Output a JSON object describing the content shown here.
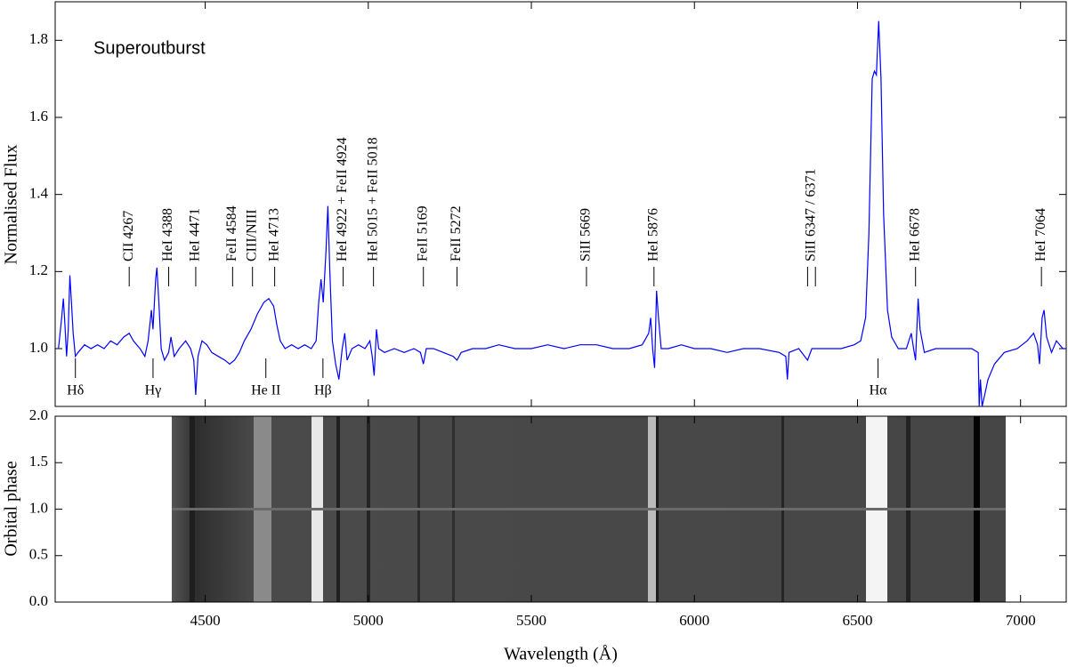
{
  "chart_data": [
    {
      "type": "line",
      "title": "Superoutburst",
      "ylabel": "Normalised Flux",
      "color": "#0000ff",
      "xlim": [
        4040,
        7140
      ],
      "ylim": [
        0.85,
        1.9
      ],
      "yticks": [
        {
          "value": 1,
          "label": "1.0"
        },
        1.2,
        1.4,
        1.6,
        1.8
      ],
      "x": [
        4050,
        4060,
        4065,
        4070,
        4075,
        4080,
        4085,
        4090,
        4095,
        4102,
        4110,
        4130,
        4150,
        4170,
        4190,
        4210,
        4230,
        4250,
        4267,
        4280,
        4300,
        4315,
        4325,
        4335,
        4340,
        4348,
        4352,
        4358,
        4365,
        4375,
        4388,
        4395,
        4405,
        4420,
        4440,
        4455,
        4465,
        4471,
        4478,
        4490,
        4505,
        4520,
        4540,
        4560,
        4575,
        4590,
        4605,
        4620,
        4640,
        4660,
        4680,
        4695,
        4710,
        4720,
        4730,
        4745,
        4765,
        4785,
        4805,
        4825,
        4840,
        4848,
        4855,
        4862,
        4870,
        4876,
        4882,
        4890,
        4900,
        4910,
        4920,
        4928,
        4935,
        4950,
        4970,
        4990,
        5005,
        5012,
        5018,
        5025,
        5032,
        5050,
        5080,
        5110,
        5140,
        5160,
        5169,
        5178,
        5200,
        5230,
        5260,
        5272,
        5285,
        5320,
        5360,
        5400,
        5450,
        5500,
        5550,
        5600,
        5650,
        5700,
        5750,
        5800,
        5840,
        5860,
        5866,
        5872,
        5878,
        5884,
        5890,
        5898,
        5920,
        5960,
        6000,
        6050,
        6100,
        6150,
        6200,
        6260,
        6280,
        6285,
        6290,
        6320,
        6347,
        6360,
        6400,
        6450,
        6490,
        6510,
        6525,
        6535,
        6545,
        6552,
        6558,
        6565,
        6572,
        6580,
        6592,
        6605,
        6625,
        6650,
        6665,
        6672,
        6678,
        6686,
        6692,
        6705,
        6740,
        6780,
        6820,
        6850,
        6870,
        6873,
        6877,
        6882,
        6890,
        6900,
        6920,
        6950,
        6990,
        7020,
        7040,
        7052,
        7058,
        7066,
        7072,
        7080,
        7095,
        7110,
        7130,
        7140
      ],
      "values": [
        1.0,
        1.08,
        1.13,
        1.06,
        0.98,
        1.05,
        1.19,
        1.12,
        1.04,
        0.98,
        0.99,
        1.01,
        1.0,
        1.01,
        1.0,
        1.02,
        1.01,
        1.03,
        1.04,
        1.02,
        1.0,
        0.98,
        1.02,
        1.1,
        1.05,
        1.18,
        1.21,
        1.12,
        1.0,
        0.97,
        0.99,
        1.03,
        0.98,
        1.0,
        1.02,
        1.0,
        0.97,
        0.88,
        0.98,
        1.02,
        1.01,
        0.99,
        0.98,
        0.97,
        0.96,
        0.97,
        0.99,
        1.02,
        1.05,
        1.09,
        1.12,
        1.13,
        1.11,
        1.06,
        1.02,
        1.0,
        1.01,
        1.0,
        1.01,
        1.0,
        1.02,
        1.12,
        1.18,
        1.12,
        1.25,
        1.37,
        1.2,
        1.02,
        0.96,
        0.92,
        1.0,
        1.04,
        0.97,
        1.0,
        1.01,
        1.0,
        1.02,
        0.98,
        0.93,
        1.05,
        1.0,
        0.99,
        1.0,
        0.99,
        1.0,
        0.99,
        0.96,
        1.0,
        1.0,
        0.99,
        0.98,
        0.97,
        0.99,
        1.0,
        1.0,
        1.01,
        1.0,
        1.0,
        1.01,
        1.0,
        1.01,
        1.01,
        1.0,
        1.0,
        1.01,
        1.04,
        1.08,
        1.0,
        0.95,
        1.15,
        1.08,
        1.0,
        1.0,
        1.01,
        1.0,
        1.0,
        0.99,
        1.0,
        1.0,
        0.99,
        0.98,
        0.92,
        0.99,
        1.0,
        0.97,
        1.0,
        1.0,
        1.0,
        1.01,
        1.02,
        1.08,
        1.3,
        1.7,
        1.72,
        1.71,
        1.85,
        1.7,
        1.35,
        1.1,
        1.03,
        1.0,
        1.0,
        1.04,
        1.0,
        0.97,
        1.13,
        1.05,
        0.99,
        1.0,
        1.0,
        1.0,
        1.0,
        0.99,
        0.85,
        0.92,
        0.85,
        0.88,
        0.92,
        0.96,
        0.99,
        1.0,
        1.02,
        1.04,
        1.01,
        0.96,
        1.08,
        1.1,
        1.03,
        0.99,
        1.02,
        1.0,
        1.0
      ],
      "annotations": [
        {
          "label": "CII 4267",
          "x": [
            4267
          ],
          "position": "above"
        },
        {
          "label": "HeI 4388",
          "x": [
            4388
          ],
          "position": "above"
        },
        {
          "label": "HeI 4471",
          "x": [
            4471
          ],
          "position": "above"
        },
        {
          "label": "FeII 4584",
          "x": [
            4584
          ],
          "position": "above"
        },
        {
          "label": "CIII/NIII",
          "x": [
            4645
          ],
          "position": "above"
        },
        {
          "label": "HeI 4713",
          "x": [
            4713
          ],
          "position": "above"
        },
        {
          "label": "HeI 4922 + FeII 4924",
          "x": [
            4923
          ],
          "position": "above"
        },
        {
          "label": "HeI 5015 + FeII 5018",
          "x": [
            5016
          ],
          "position": "above"
        },
        {
          "label": "FeII 5169",
          "x": [
            5169
          ],
          "position": "above"
        },
        {
          "label": "FeII 5272",
          "x": [
            5272
          ],
          "position": "above"
        },
        {
          "label": "SiII 5669",
          "x": [
            5669
          ],
          "position": "above"
        },
        {
          "label": "HeI 5876",
          "x": [
            5876
          ],
          "position": "above"
        },
        {
          "label": "SiII 6347 / 6371",
          "x": [
            6347,
            6371
          ],
          "position": "above"
        },
        {
          "label": "HeI 6678",
          "x": [
            6678
          ],
          "position": "above"
        },
        {
          "label": "HeI 7064",
          "x": [
            7064
          ],
          "position": "above"
        },
        {
          "label": "Hδ",
          "x": [
            4102
          ],
          "position": "below"
        },
        {
          "label": "Hγ",
          "x": [
            4340
          ],
          "position": "below"
        },
        {
          "label": "He II",
          "x": [
            4686
          ],
          "position": "below"
        },
        {
          "label": "Hβ",
          "x": [
            4861
          ],
          "position": "below"
        },
        {
          "label": "Hα",
          "x": [
            6563
          ],
          "position": "below"
        }
      ]
    },
    {
      "type": "image",
      "ylabel": "Orbital phase",
      "xlabel": "Wavelength (Å)",
      "xlim": [
        4040,
        7140
      ],
      "ylim": [
        0,
        2
      ],
      "xticks": [
        4500,
        5000,
        5500,
        6000,
        6500,
        7000
      ],
      "yticks": [
        {
          "value": 0,
          "label": "0.0"
        },
        0.5,
        {
          "value": 1,
          "label": "1.0"
        },
        1.5,
        {
          "value": 2,
          "label": "2.0"
        }
      ]
    }
  ]
}
